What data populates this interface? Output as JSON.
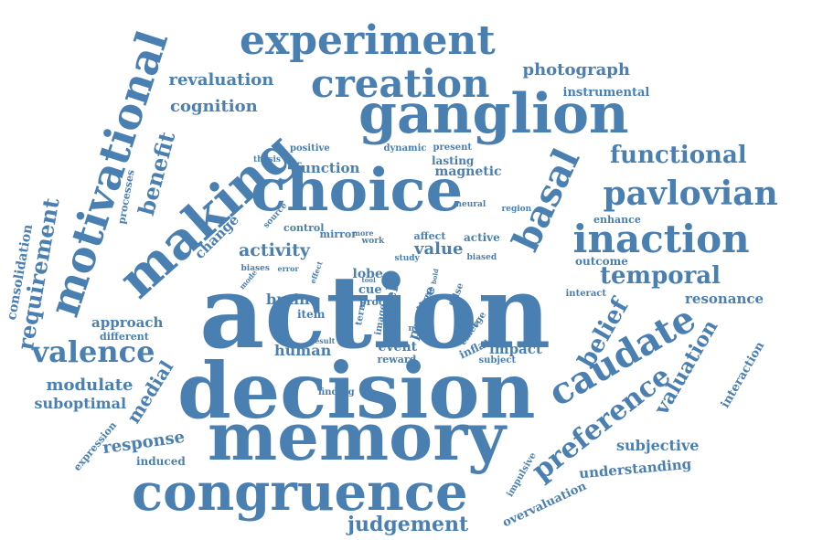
{
  "colors": {
    "word": "#4a7fb2",
    "background": "#ffffff"
  },
  "words": [
    "action",
    "decision",
    "memory",
    "choice",
    "making",
    "congruence",
    "ganglion",
    "motivational",
    "experiment",
    "creation",
    "inaction",
    "pavlovian",
    "basal",
    "caudate",
    "valence",
    "functional",
    "preference",
    "belief",
    "temporal",
    "requirement",
    "judgement",
    "benefit",
    "valuation",
    "revaluation",
    "cognition",
    "photograph",
    "instrumental",
    "function",
    "magnetic",
    "activity",
    "value",
    "change",
    "brain",
    "human",
    "item",
    "event",
    "reward",
    "lobe",
    "approach",
    "different",
    "modulate",
    "suboptimal",
    "medial",
    "response",
    "induced",
    "expression",
    "subjective",
    "understanding",
    "interaction",
    "resonance",
    "outcome",
    "interact",
    "enhance",
    "impact",
    "inflate",
    "subject",
    "passive",
    "self",
    "active",
    "affect",
    "work",
    "study",
    "control",
    "mirror",
    "source",
    "positive",
    "dynamic",
    "present",
    "lasting",
    "neural",
    "region",
    "thesis",
    "cue",
    "proc",
    "term",
    "image",
    "finding",
    "impulsive",
    "overvaluation",
    "consolidation",
    "processes",
    "biased",
    "biases",
    "mode",
    "error",
    "effect",
    "tool",
    "choose",
    "false",
    "hard",
    "emerge",
    "novel",
    "result",
    "bold",
    "more"
  ]
}
